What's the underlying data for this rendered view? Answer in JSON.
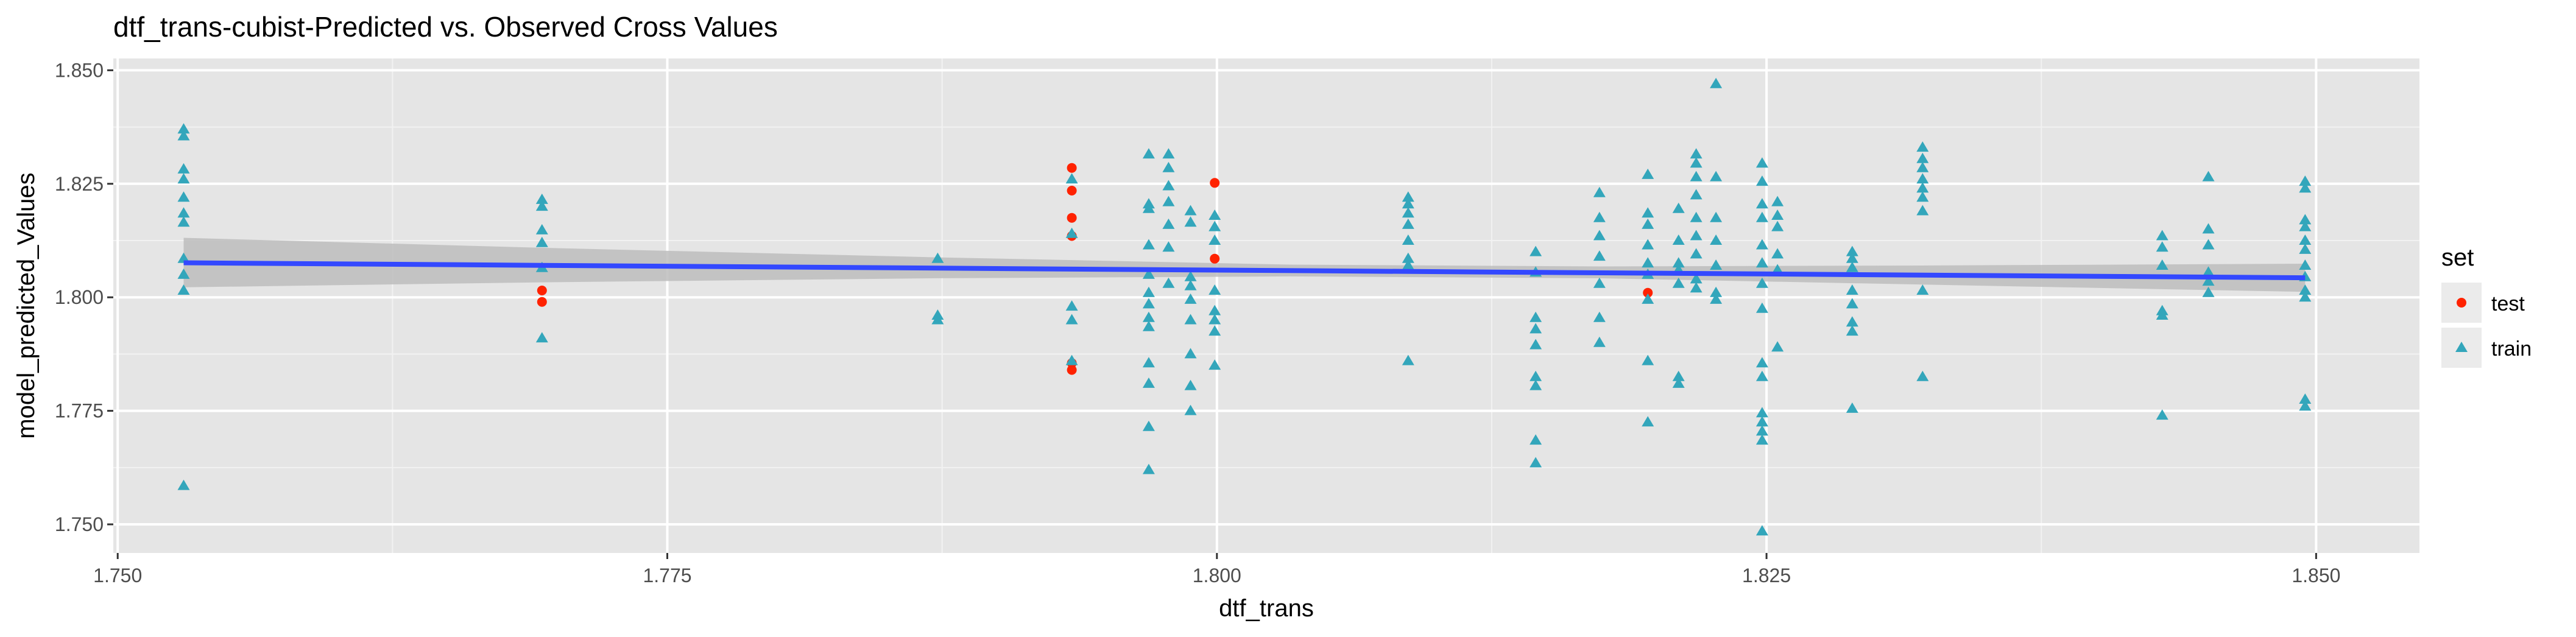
{
  "chart_data": {
    "type": "scatter",
    "title": "dtf_trans-cubist-Predicted vs. Observed Cross Values",
    "xlabel": "dtf_trans",
    "ylabel": "model_predicted_Values",
    "xlim": [
      1.7498,
      1.8547
    ],
    "ylim": [
      1.7437,
      1.8526
    ],
    "x_ticks": [
      1.75,
      1.775,
      1.8,
      1.825,
      1.85
    ],
    "x_tick_labels": [
      "1.750",
      "1.775",
      "1.800",
      "1.825",
      "1.850"
    ],
    "y_ticks": [
      1.75,
      1.775,
      1.8,
      1.825,
      1.85
    ],
    "y_tick_labels": [
      "1.750",
      "1.775",
      "1.800",
      "1.825",
      "1.850"
    ],
    "grid": true,
    "panel_background": "#e5e5e5",
    "legend": {
      "title": "set",
      "placement": "right",
      "entries": [
        {
          "label": "test",
          "color": "#ff2200",
          "shape": "circle"
        },
        {
          "label": "train",
          "color": "#33a6bb",
          "shape": "triangle"
        }
      ]
    },
    "series": [
      {
        "name": "test",
        "color": "#ff2200",
        "shape": "circle",
        "points": [
          [
            1.7693,
            1.8015
          ],
          [
            1.7693,
            1.799
          ],
          [
            1.7934,
            1.8285
          ],
          [
            1.7934,
            1.8235
          ],
          [
            1.7934,
            1.8175
          ],
          [
            1.7934,
            1.8135
          ],
          [
            1.7934,
            1.7855
          ],
          [
            1.7934,
            1.784
          ],
          [
            1.7999,
            1.8252
          ],
          [
            1.7999,
            1.8085
          ],
          [
            1.8196,
            1.801
          ]
        ]
      },
      {
        "name": "train",
        "color": "#33a6bb",
        "shape": "triangle",
        "points": [
          [
            1.753,
            1.837
          ],
          [
            1.753,
            1.8355
          ],
          [
            1.753,
            1.8282
          ],
          [
            1.753,
            1.826
          ],
          [
            1.753,
            1.822
          ],
          [
            1.753,
            1.8185
          ],
          [
            1.753,
            1.8165
          ],
          [
            1.753,
            1.8085
          ],
          [
            1.753,
            1.805
          ],
          [
            1.753,
            1.8015
          ],
          [
            1.753,
            1.7585
          ],
          [
            1.7693,
            1.8215
          ],
          [
            1.7693,
            1.82
          ],
          [
            1.7693,
            1.8148
          ],
          [
            1.7693,
            1.812
          ],
          [
            1.7693,
            1.8065
          ],
          [
            1.7693,
            1.791
          ],
          [
            1.7873,
            1.8085
          ],
          [
            1.7873,
            1.796
          ],
          [
            1.7873,
            1.795
          ],
          [
            1.7934,
            1.826
          ],
          [
            1.7934,
            1.814
          ],
          [
            1.7934,
            1.798
          ],
          [
            1.7934,
            1.795
          ],
          [
            1.7934,
            1.786
          ],
          [
            1.7969,
            1.8315
          ],
          [
            1.7969,
            1.8205
          ],
          [
            1.7969,
            1.8195
          ],
          [
            1.7969,
            1.8115
          ],
          [
            1.7969,
            1.805
          ],
          [
            1.7969,
            1.801
          ],
          [
            1.7969,
            1.7985
          ],
          [
            1.7969,
            1.7955
          ],
          [
            1.7969,
            1.7935
          ],
          [
            1.7969,
            1.7855
          ],
          [
            1.7969,
            1.781
          ],
          [
            1.7969,
            1.7715
          ],
          [
            1.7969,
            1.762
          ],
          [
            1.7978,
            1.8315
          ],
          [
            1.7978,
            1.8285
          ],
          [
            1.7978,
            1.8245
          ],
          [
            1.7978,
            1.821
          ],
          [
            1.7978,
            1.816
          ],
          [
            1.7978,
            1.811
          ],
          [
            1.7978,
            1.803
          ],
          [
            1.7988,
            1.819
          ],
          [
            1.7988,
            1.8165
          ],
          [
            1.7988,
            1.8045
          ],
          [
            1.7988,
            1.8025
          ],
          [
            1.7988,
            1.7995
          ],
          [
            1.7988,
            1.795
          ],
          [
            1.7988,
            1.7875
          ],
          [
            1.7988,
            1.7805
          ],
          [
            1.7988,
            1.775
          ],
          [
            1.7999,
            1.818
          ],
          [
            1.7999,
            1.8155
          ],
          [
            1.7999,
            1.8125
          ],
          [
            1.7999,
            1.8015
          ],
          [
            1.7999,
            1.797
          ],
          [
            1.7999,
            1.795
          ],
          [
            1.7999,
            1.7925
          ],
          [
            1.7999,
            1.785
          ],
          [
            1.8087,
            1.822
          ],
          [
            1.8087,
            1.8205
          ],
          [
            1.8087,
            1.8185
          ],
          [
            1.8087,
            1.816
          ],
          [
            1.8087,
            1.8125
          ],
          [
            1.8087,
            1.8085
          ],
          [
            1.8087,
            1.807
          ],
          [
            1.8087,
            1.786
          ],
          [
            1.8145,
            1.81
          ],
          [
            1.8145,
            1.8055
          ],
          [
            1.8145,
            1.7955
          ],
          [
            1.8145,
            1.793
          ],
          [
            1.8145,
            1.7895
          ],
          [
            1.8145,
            1.7825
          ],
          [
            1.8145,
            1.7805
          ],
          [
            1.8145,
            1.7685
          ],
          [
            1.8145,
            1.7635
          ],
          [
            1.8174,
            1.823
          ],
          [
            1.8174,
            1.8175
          ],
          [
            1.8174,
            1.8135
          ],
          [
            1.8174,
            1.809
          ],
          [
            1.8174,
            1.803
          ],
          [
            1.8174,
            1.7955
          ],
          [
            1.8174,
            1.79
          ],
          [
            1.8196,
            1.827
          ],
          [
            1.8196,
            1.8185
          ],
          [
            1.8196,
            1.816
          ],
          [
            1.8196,
            1.8115
          ],
          [
            1.8196,
            1.8075
          ],
          [
            1.8196,
            1.805
          ],
          [
            1.8196,
            1.7995
          ],
          [
            1.8196,
            1.786
          ],
          [
            1.8196,
            1.7725
          ],
          [
            1.821,
            1.8195
          ],
          [
            1.821,
            1.8125
          ],
          [
            1.821,
            1.8075
          ],
          [
            1.821,
            1.806
          ],
          [
            1.821,
            1.803
          ],
          [
            1.821,
            1.7825
          ],
          [
            1.821,
            1.781
          ],
          [
            1.8218,
            1.8315
          ],
          [
            1.8218,
            1.8295
          ],
          [
            1.8218,
            1.8265
          ],
          [
            1.8218,
            1.8225
          ],
          [
            1.8218,
            1.8175
          ],
          [
            1.8218,
            1.8135
          ],
          [
            1.8218,
            1.8095
          ],
          [
            1.8218,
            1.804
          ],
          [
            1.8218,
            1.802
          ],
          [
            1.8227,
            1.847
          ],
          [
            1.8227,
            1.8265
          ],
          [
            1.8227,
            1.8175
          ],
          [
            1.8227,
            1.8125
          ],
          [
            1.8227,
            1.807
          ],
          [
            1.8227,
            1.801
          ],
          [
            1.8227,
            1.7995
          ],
          [
            1.8248,
            1.8295
          ],
          [
            1.8248,
            1.8255
          ],
          [
            1.8248,
            1.8205
          ],
          [
            1.8248,
            1.8175
          ],
          [
            1.8248,
            1.8115
          ],
          [
            1.8248,
            1.8075
          ],
          [
            1.8248,
            1.803
          ],
          [
            1.8248,
            1.7975
          ],
          [
            1.8248,
            1.7855
          ],
          [
            1.8248,
            1.7825
          ],
          [
            1.8248,
            1.7745
          ],
          [
            1.8248,
            1.7725
          ],
          [
            1.8248,
            1.7705
          ],
          [
            1.8248,
            1.7685
          ],
          [
            1.8248,
            1.7485
          ],
          [
            1.8255,
            1.821
          ],
          [
            1.8255,
            1.818
          ],
          [
            1.8255,
            1.8155
          ],
          [
            1.8255,
            1.8095
          ],
          [
            1.8255,
            1.806
          ],
          [
            1.8255,
            1.789
          ],
          [
            1.8289,
            1.81
          ],
          [
            1.8289,
            1.8085
          ],
          [
            1.8289,
            1.8065
          ],
          [
            1.8289,
            1.8015
          ],
          [
            1.8289,
            1.7985
          ],
          [
            1.8289,
            1.7945
          ],
          [
            1.8289,
            1.7925
          ],
          [
            1.8289,
            1.7755
          ],
          [
            1.8321,
            1.833
          ],
          [
            1.8321,
            1.8305
          ],
          [
            1.8321,
            1.8285
          ],
          [
            1.8321,
            1.826
          ],
          [
            1.8321,
            1.824
          ],
          [
            1.8321,
            1.822
          ],
          [
            1.8321,
            1.819
          ],
          [
            1.8321,
            1.8015
          ],
          [
            1.8321,
            1.7825
          ],
          [
            1.843,
            1.8135
          ],
          [
            1.843,
            1.811
          ],
          [
            1.843,
            1.807
          ],
          [
            1.843,
            1.797
          ],
          [
            1.843,
            1.796
          ],
          [
            1.843,
            1.774
          ],
          [
            1.8451,
            1.8265
          ],
          [
            1.8451,
            1.815
          ],
          [
            1.8451,
            1.8115
          ],
          [
            1.8451,
            1.8055
          ],
          [
            1.8451,
            1.8035
          ],
          [
            1.8451,
            1.801
          ],
          [
            1.8495,
            1.8255
          ],
          [
            1.8495,
            1.824
          ],
          [
            1.8495,
            1.817
          ],
          [
            1.8495,
            1.8155
          ],
          [
            1.8495,
            1.8125
          ],
          [
            1.8495,
            1.8105
          ],
          [
            1.8495,
            1.807
          ],
          [
            1.8495,
            1.8045
          ],
          [
            1.8495,
            1.8015
          ],
          [
            1.8495,
            1.8
          ],
          [
            1.8495,
            1.7775
          ],
          [
            1.8495,
            1.776
          ]
        ]
      }
    ],
    "smooth": {
      "method": "linear",
      "color": "#3348ff",
      "ribbon_color": "#bdbdbd",
      "x_start": 1.753,
      "x_end": 1.8495,
      "fit": [
        1.8076,
        1.8043
      ],
      "band": [
        [
          1.753,
          1.8022,
          1.8131
        ],
        [
          1.7693,
          1.8033,
          1.8109
        ],
        [
          1.7873,
          1.8042,
          1.8088
        ],
        [
          1.8033,
          1.8046,
          1.8072
        ],
        [
          1.8174,
          1.8042,
          1.8068
        ],
        [
          1.8321,
          1.8028,
          1.807
        ],
        [
          1.8495,
          1.8012,
          1.8074
        ]
      ]
    }
  }
}
